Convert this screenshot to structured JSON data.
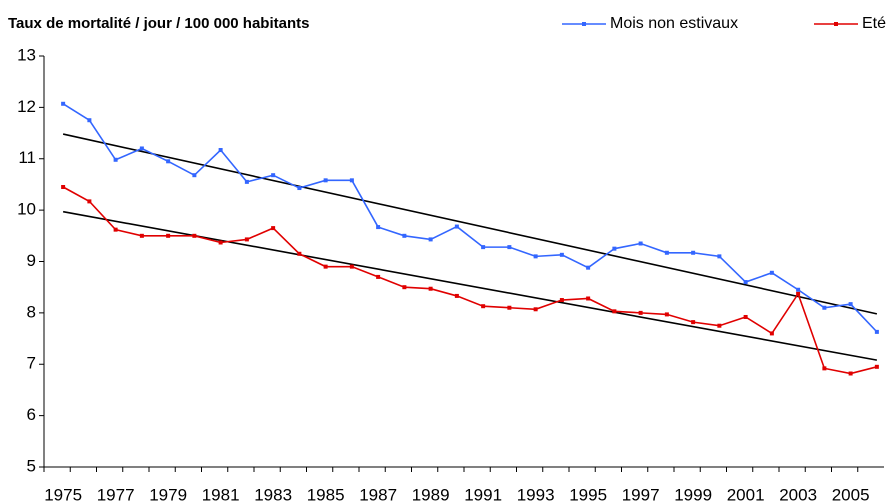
{
  "chart_data": {
    "type": "line",
    "title": "Taux de mortalité / jour / 100 000 habitants",
    "categories": [
      "1975",
      null,
      "1977",
      null,
      "1979",
      null,
      "1981",
      null,
      "1983",
      null,
      "1985",
      null,
      "1987",
      null,
      "1989",
      null,
      "1991",
      null,
      "1993",
      null,
      "1995",
      null,
      "1997",
      null,
      "1999",
      null,
      "2001",
      null,
      "2003",
      null,
      "2005",
      null
    ],
    "series": [
      {
        "name": "Mois non estivaux",
        "color": "#3366ff",
        "values": [
          12.07,
          11.75,
          10.98,
          11.2,
          10.95,
          10.68,
          11.17,
          10.55,
          10.68,
          10.43,
          10.58,
          10.58,
          9.67,
          9.5,
          9.43,
          9.68,
          9.28,
          9.28,
          9.1,
          9.13,
          8.88,
          9.25,
          9.35,
          9.17,
          9.17,
          9.1,
          8.6,
          8.78,
          8.45,
          8.1,
          8.17,
          7.63
        ]
      },
      {
        "name": "Eté",
        "color": "#e00000",
        "values": [
          10.45,
          10.17,
          9.62,
          9.5,
          9.5,
          9.5,
          9.37,
          9.43,
          9.65,
          9.15,
          8.9,
          8.9,
          8.7,
          8.5,
          8.47,
          8.33,
          8.13,
          8.1,
          8.07,
          8.25,
          8.28,
          8.03,
          8.0,
          7.97,
          7.82,
          7.75,
          7.92,
          7.6,
          8.37,
          6.92,
          6.82,
          6.95
        ]
      }
    ],
    "trend_lines": [
      {
        "color": "#000000",
        "values": [
          11.48,
          7.98
        ]
      },
      {
        "color": "#000000",
        "values": [
          9.97,
          7.08
        ]
      }
    ],
    "ylim": [
      5,
      13
    ],
    "yticks": [
      5,
      6,
      7,
      8,
      9,
      10,
      11,
      12,
      13
    ],
    "grid": false,
    "legend": "top-right"
  }
}
